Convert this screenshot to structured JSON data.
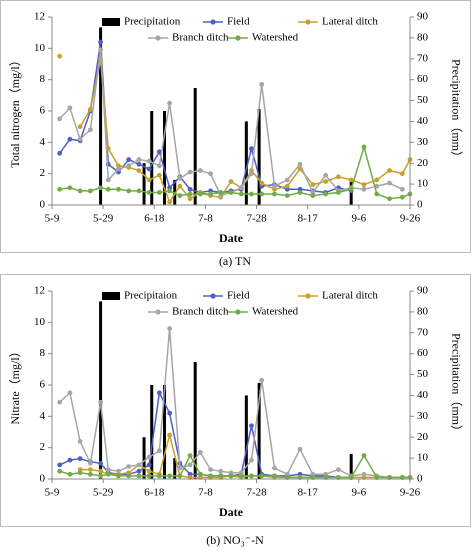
{
  "chart_data": [
    {
      "type": "line",
      "caption": "(a) TN",
      "x_label": "Date",
      "y_label": "Total nitrogen（mg/l）",
      "y2_label": "Precipitation（mm）",
      "xlim": [
        "5-9",
        "9-26"
      ],
      "xticks": [
        "5-9",
        "5-29",
        "6-18",
        "7-8",
        "7-28",
        "8-17",
        "9-6",
        "9-26"
      ],
      "ylim": [
        0,
        12
      ],
      "yticks": [
        0,
        2,
        4,
        6,
        8,
        10,
        12
      ],
      "y2lim": [
        0,
        90
      ],
      "y2ticks": [
        0,
        10,
        20,
        30,
        40,
        50,
        60,
        70,
        80,
        90
      ],
      "x": [
        "5-12",
        "5-16",
        "5-20",
        "5-24",
        "5-28",
        "5-31",
        "6-4",
        "6-8",
        "6-12",
        "6-16",
        "6-20",
        "6-24",
        "6-28",
        "7-2",
        "7-6",
        "7-10",
        "7-14",
        "7-18",
        "7-22",
        "7-26",
        "7-30",
        "8-4",
        "8-9",
        "8-14",
        "8-19",
        "8-24",
        "8-29",
        "9-3",
        "9-8",
        "9-13",
        "9-18",
        "9-23",
        "9-26"
      ],
      "series": [
        {
          "name": "Precipitation",
          "type": "bar",
          "axis": "y2",
          "color": "#000000",
          "x": [
            "5-28",
            "6-14",
            "6-17",
            "6-22",
            "6-26",
            "7-4",
            "7-24",
            "7-29",
            "9-3"
          ],
          "values": [
            85,
            20,
            45,
            45,
            12,
            56,
            40,
            46,
            12
          ]
        },
        {
          "name": "Field",
          "color": "#4e5fc8",
          "values": [
            3.3,
            4.2,
            4.1,
            6,
            10.4,
            2.6,
            2.1,
            2.9,
            2.6,
            2.3,
            3.4,
            1.1,
            1.8,
            1.0,
            0.8,
            0.9,
            0.8,
            0.9,
            1.0,
            3.6,
            1.2,
            1.3,
            1.0,
            1.0,
            0.9,
            0.8,
            1.1,
            0.9,
            null,
            null,
            null,
            null,
            null
          ]
        },
        {
          "name": "Lateral ditch",
          "color": "#c9a02a",
          "values": [
            9.5,
            null,
            5.0,
            6.1,
            9.3,
            3.6,
            2.5,
            2.4,
            2.2,
            1.6,
            1.9,
            0.2,
            1.2,
            0.4,
            0.8,
            0.6,
            0.5,
            1.5,
            1.1,
            2.2,
            1.4,
            1.0,
            1.2,
            2.3,
            1.3,
            1.5,
            1.8,
            1.6,
            1.3,
            1.6,
            2.2,
            2.0,
            2.9
          ]
        },
        {
          "name": "Branch ditch",
          "color": "#a6a6a6",
          "values": [
            5.5,
            6.2,
            4.2,
            4.8,
            9.9,
            1.6,
            2.3,
            2.5,
            2.9,
            2.8,
            2.5,
            6.5,
            1.7,
            2.1,
            2.2,
            2.0,
            0.6,
            0.8,
            1.1,
            2.0,
            7.7,
            1.2,
            1.6,
            2.6,
            0.8,
            1.9,
            0.9,
            1.1,
            1.0,
            1.2,
            1.4,
            1.0,
            null
          ]
        },
        {
          "name": "Watershed",
          "color": "#70ad47",
          "values": [
            1.0,
            1.1,
            0.9,
            0.9,
            1.1,
            1.0,
            1.0,
            0.9,
            0.9,
            0.8,
            0.8,
            0.9,
            0.6,
            0.7,
            0.7,
            0.7,
            0.8,
            0.8,
            0.7,
            0.7,
            0.7,
            0.7,
            0.6,
            0.8,
            0.6,
            0.7,
            0.8,
            1.0,
            3.7,
            0.7,
            0.4,
            0.5,
            0.7
          ]
        }
      ]
    },
    {
      "type": "line",
      "caption": "(b) NO₃⁻-N",
      "x_label": "Date",
      "y_label": "Nitrate（mg/l）",
      "y2_label": "Precipitation（mm）",
      "xlim": [
        "5-9",
        "9-26"
      ],
      "xticks": [
        "5-9",
        "5-29",
        "6-18",
        "7-8",
        "7-28",
        "8-17",
        "9-6",
        "9-26"
      ],
      "ylim": [
        0,
        12
      ],
      "yticks": [
        0,
        2,
        4,
        6,
        8,
        10,
        12
      ],
      "y2lim": [
        0,
        90
      ],
      "y2ticks": [
        0,
        10,
        20,
        30,
        40,
        50,
        60,
        70,
        80,
        90
      ],
      "x": [
        "5-12",
        "5-16",
        "5-20",
        "5-24",
        "5-28",
        "5-31",
        "6-4",
        "6-8",
        "6-12",
        "6-16",
        "6-20",
        "6-24",
        "6-28",
        "7-2",
        "7-6",
        "7-10",
        "7-14",
        "7-18",
        "7-22",
        "7-26",
        "7-30",
        "8-4",
        "8-9",
        "8-14",
        "8-19",
        "8-24",
        "8-29",
        "9-3",
        "9-8",
        "9-13",
        "9-18",
        "9-23",
        "9-26"
      ],
      "series": [
        {
          "name": "Precipitaion",
          "type": "bar",
          "axis": "y2",
          "color": "#000000",
          "x": [
            "5-28",
            "6-14",
            "6-17",
            "6-22",
            "6-26",
            "7-4",
            "7-24",
            "7-29",
            "9-3"
          ],
          "values": [
            85,
            20,
            45,
            45,
            10,
            56,
            40,
            46,
            12
          ]
        },
        {
          "name": "Field",
          "color": "#4e5fc8",
          "values": [
            0.9,
            1.2,
            1.3,
            1.1,
            1.0,
            0.4,
            0.3,
            0.3,
            0.5,
            0.9,
            5.5,
            4.2,
            1.0,
            0.3,
            0.3,
            0.2,
            0.2,
            0.2,
            0.3,
            3.4,
            0.3,
            0.2,
            0.2,
            0.3,
            0.2,
            0.2,
            0.1,
            0.1,
            null,
            null,
            null,
            null,
            null
          ]
        },
        {
          "name": "Lateral ditch",
          "color": "#c9a02a",
          "values": [
            null,
            null,
            0.6,
            0.6,
            0.5,
            0.3,
            0.3,
            0.4,
            0.9,
            0.5,
            0.3,
            2.8,
            0.2,
            0.1,
            0.1,
            0.1,
            0.1,
            0.2,
            0.1,
            0.2,
            0.2,
            0.1,
            0.1,
            0.1,
            0.1,
            0.1,
            0.1,
            0.1,
            0.1,
            0.1,
            0.1,
            0.1,
            0.1
          ]
        },
        {
          "name": "Branch ditch",
          "color": "#a6a6a6",
          "values": [
            4.9,
            5.5,
            2.4,
            1.0,
            4.9,
            0.6,
            0.5,
            0.8,
            0.9,
            1.4,
            1.8,
            9.6,
            0.7,
            0.9,
            1.7,
            0.6,
            0.5,
            0.4,
            0.4,
            1.2,
            6.3,
            0.7,
            0.3,
            1.9,
            0.3,
            0.3,
            0.6,
            0.2,
            0.3,
            0.2,
            0.1,
            0.1,
            null
          ]
        },
        {
          "name": "Watershed",
          "color": "#70ad47",
          "values": [
            0.5,
            0.3,
            0.4,
            0.3,
            0.2,
            0.3,
            0.2,
            0.2,
            0.2,
            0.2,
            0.2,
            0.2,
            0.2,
            1.5,
            0.3,
            0.2,
            0.2,
            0.2,
            0.2,
            0.2,
            0.2,
            0.2,
            0.1,
            0.1,
            0.1,
            0.1,
            0.1,
            0.1,
            1.5,
            0.1,
            0.1,
            0.1,
            0.1
          ]
        }
      ]
    }
  ]
}
